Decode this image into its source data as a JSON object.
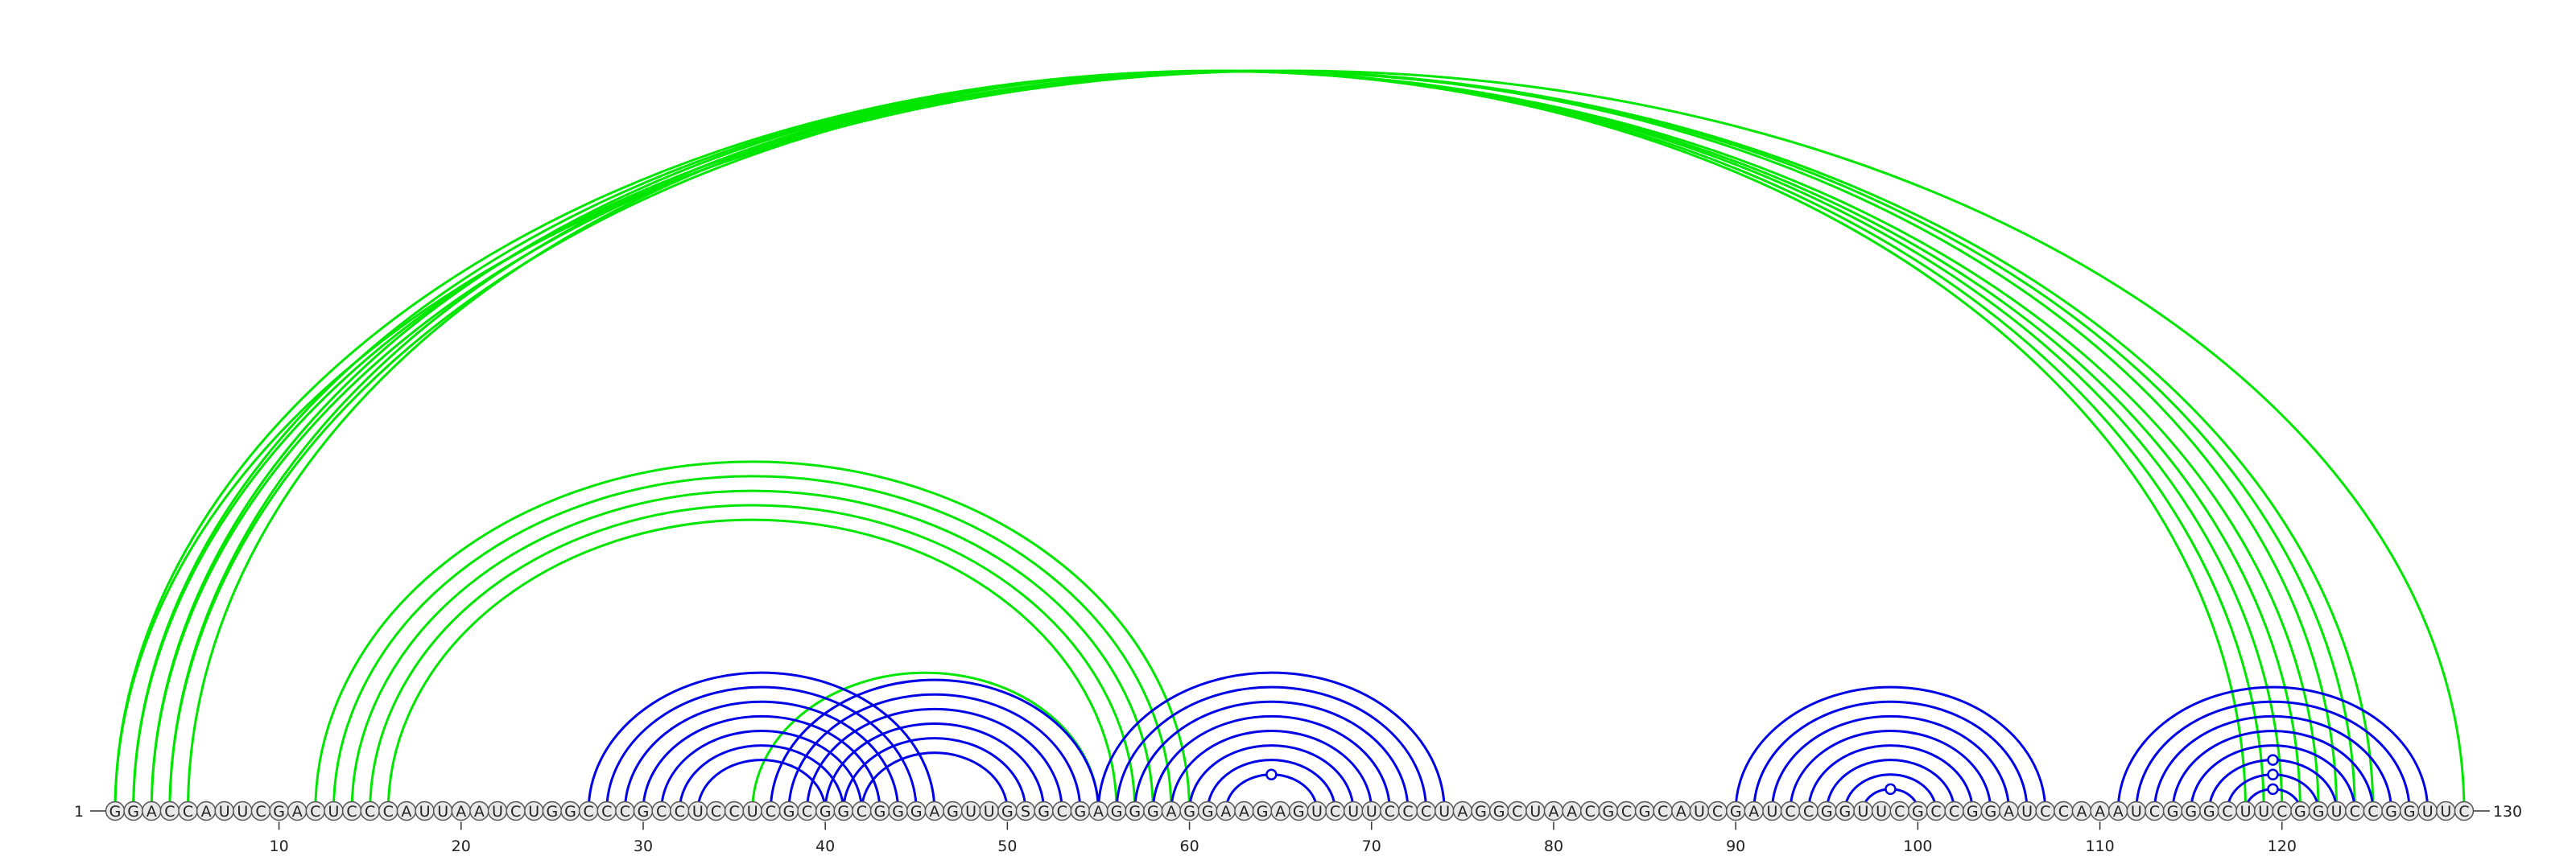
{
  "sequence": "GGACCAUUCGACUCCCAUUAAUCUGGCCCGCCUCCUCGCGGCGGGAGUUGSGCGAGGGAGGAAGAGUCUUCCCUAGGCUAACGCGCAUCGAUCCGGUUCGCCGGAUCCAAAUCGGGCUUCGGUCCGGUUC",
  "start_label": "1",
  "end_label": "130",
  "ticks": [
    10,
    20,
    30,
    40,
    50,
    60,
    70,
    80,
    90,
    100,
    110,
    120
  ],
  "colors": {
    "green_arc": "#00e600",
    "blue_arc": "#0000e6",
    "nucleotide_fill": "#e8e8e8",
    "nucleotide_stroke": "#555555"
  },
  "arcs": {
    "green_long": [
      [
        1,
        122
      ],
      [
        2,
        121
      ],
      [
        3,
        120
      ],
      [
        4,
        119
      ],
      [
        5,
        118
      ],
      [
        1,
        130
      ],
      [
        2,
        125
      ],
      [
        3,
        124
      ],
      [
        4,
        123
      ]
    ],
    "green_middle": [
      [
        12,
        60
      ],
      [
        13,
        59
      ],
      [
        14,
        58
      ],
      [
        15,
        57
      ],
      [
        16,
        56
      ],
      [
        36,
        55
      ]
    ],
    "blue_left": [
      [
        27,
        46
      ],
      [
        28,
        45
      ],
      [
        29,
        44
      ],
      [
        30,
        43
      ],
      [
        31,
        42
      ],
      [
        32,
        41
      ],
      [
        33,
        40
      ]
    ],
    "blue_overlap": [
      [
        37,
        55
      ],
      [
        38,
        54
      ],
      [
        39,
        53
      ],
      [
        40,
        52
      ],
      [
        41,
        51
      ],
      [
        42,
        50
      ]
    ],
    "blue_center": [
      [
        55,
        74
      ],
      [
        56,
        73
      ],
      [
        57,
        72
      ],
      [
        58,
        71
      ],
      [
        59,
        70
      ],
      [
        60,
        69
      ],
      [
        61,
        68
      ],
      [
        62,
        67
      ]
    ],
    "blue_right1": [
      [
        90,
        107
      ],
      [
        91,
        106
      ],
      [
        92,
        105
      ],
      [
        93,
        104
      ],
      [
        94,
        103
      ],
      [
        95,
        102
      ],
      [
        96,
        101
      ],
      [
        97,
        100
      ]
    ],
    "blue_right2": [
      [
        111,
        128
      ],
      [
        112,
        127
      ],
      [
        113,
        126
      ],
      [
        114,
        125
      ],
      [
        115,
        124
      ],
      [
        116,
        123
      ],
      [
        117,
        122
      ],
      [
        118,
        121
      ]
    ]
  },
  "noncanonical_marks": [
    [
      62,
      67
    ],
    [
      97,
      100
    ],
    [
      116,
      123
    ],
    [
      117,
      122
    ],
    [
      118,
      121
    ]
  ]
}
